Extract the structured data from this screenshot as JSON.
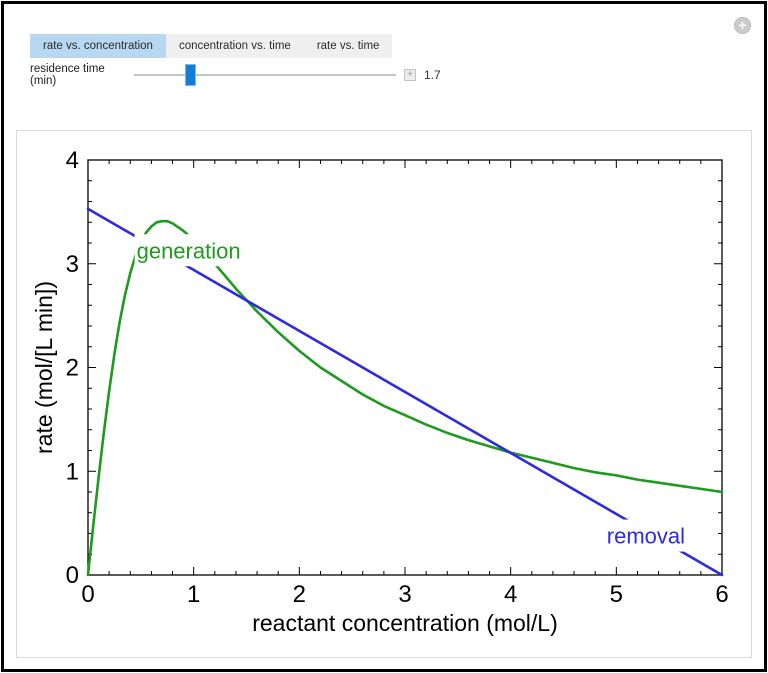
{
  "window": {
    "expand_icon": "+"
  },
  "tabs": [
    {
      "label": "rate vs. concentration",
      "selected": true
    },
    {
      "label": "concentration vs. time",
      "selected": false
    },
    {
      "label": "rate vs. time",
      "selected": false
    }
  ],
  "slider": {
    "label": "residence time (min)",
    "value": "1.7",
    "open_icon": "+"
  },
  "chart_data": {
    "type": "line",
    "title": "",
    "xlabel": "reactant concentration (mol/L)",
    "ylabel": "rate (mol/[L min])",
    "xlim": [
      0,
      6
    ],
    "ylim": [
      0,
      4
    ],
    "x_major_ticks": [
      0,
      1,
      2,
      3,
      4,
      5,
      6
    ],
    "y_major_ticks": [
      0,
      1,
      2,
      3,
      4
    ],
    "minor_tick_step": 0.2,
    "grid": false,
    "legend_position": "none",
    "frame_color": "#000000",
    "series": [
      {
        "name": "generation",
        "color": "#1e9b1e",
        "x": [
          0,
          0.05,
          0.1,
          0.15,
          0.2,
          0.25,
          0.3,
          0.35,
          0.4,
          0.45,
          0.5,
          0.55,
          0.6,
          0.65,
          0.7,
          0.75,
          0.8,
          0.9,
          1,
          1.1,
          1.2,
          1.3,
          1.4,
          1.5,
          1.6,
          1.8,
          2,
          2.2,
          2.4,
          2.6,
          2.8,
          3,
          3.2,
          3.4,
          3.6,
          3.8,
          4,
          4.2,
          4.4,
          4.6,
          4.8,
          5,
          5.2,
          5.4,
          5.6,
          5.8,
          6
        ],
        "y": [
          0,
          0.48,
          0.94,
          1.37,
          1.77,
          2.13,
          2.44,
          2.7,
          2.91,
          3.08,
          3.21,
          3.3,
          3.36,
          3.4,
          3.41,
          3.41,
          3.39,
          3.32,
          3.23,
          3.12,
          3,
          2.88,
          2.76,
          2.65,
          2.54,
          2.34,
          2.16,
          2,
          1.87,
          1.74,
          1.63,
          1.54,
          1.45,
          1.37,
          1.3,
          1.24,
          1.18,
          1.13,
          1.08,
          1.03,
          0.99,
          0.96,
          0.92,
          0.89,
          0.86,
          0.83,
          0.8
        ]
      },
      {
        "name": "removal",
        "color": "#2a2ae8",
        "x": [
          0,
          6
        ],
        "y": [
          3.529,
          0
        ]
      }
    ],
    "annotations": [
      {
        "text": "generation",
        "color": "#1e9b1e",
        "x": 0.46,
        "y": 3.13,
        "anchor": "start"
      },
      {
        "text": "removal",
        "color": "#2a2ae8",
        "x": 5.28,
        "y": 0.38,
        "anchor": "middle"
      }
    ]
  }
}
